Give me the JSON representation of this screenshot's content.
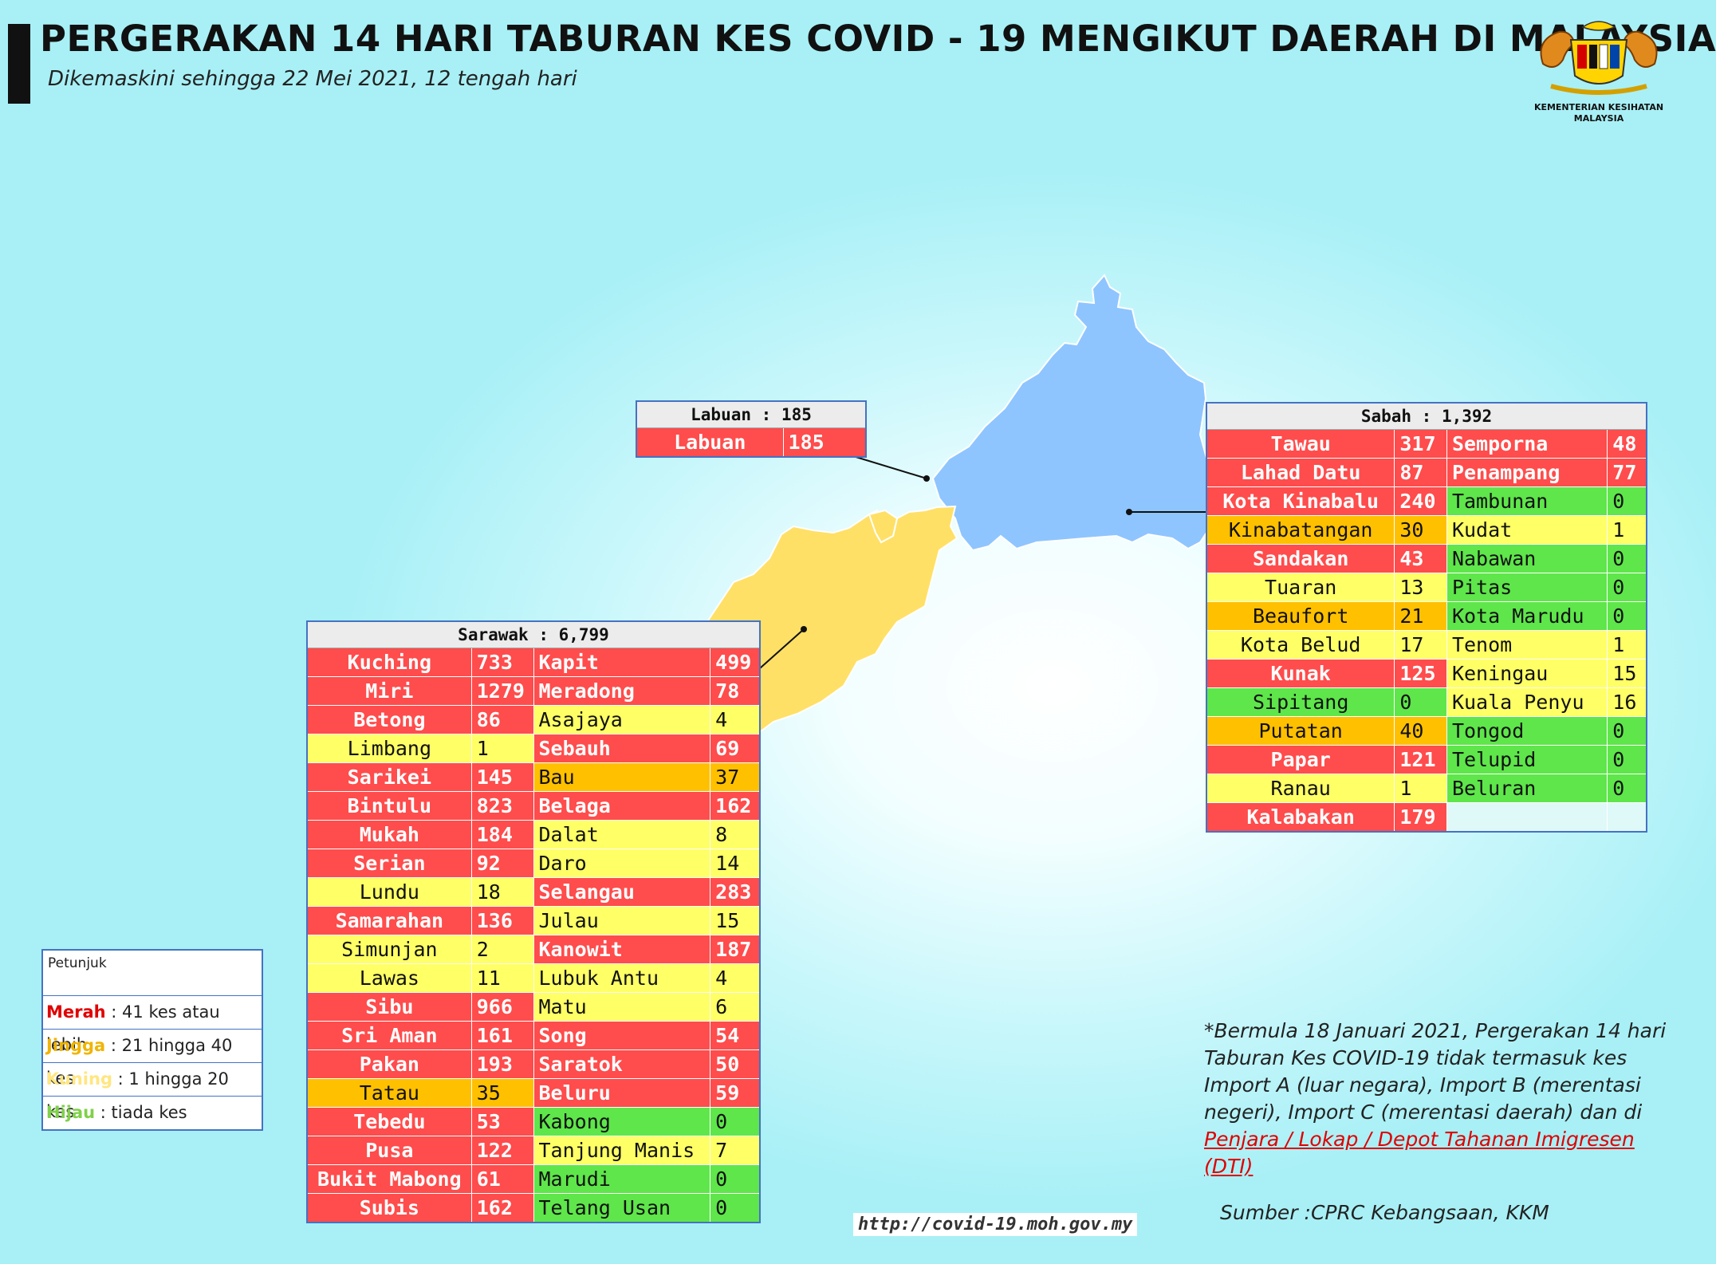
{
  "title": "PERGERAKAN 14 HARI TABURAN KES COVID - 19 MENGIKUT DAERAH DI MALAYSIA",
  "subtitle": "Dikemaskini sehingga 22 Mei 2021, 12 tengah hari",
  "logo": {
    "caption_line1": "KEMENTERIAN KESIHATAN",
    "caption_line2": "MALAYSIA"
  },
  "colors": {
    "merah": "#ff4c4c",
    "jingga": "#ffc000",
    "kuning": "#ffff66",
    "hijau": "#5ee64a",
    "sabah_map": "#8ec5ff",
    "sarawak_map": "#ffe066"
  },
  "labuan": {
    "header": "Labuan : 185",
    "rows": [
      {
        "name": "Labuan",
        "value": "185",
        "level": "merah"
      }
    ]
  },
  "sabah": {
    "header": "Sabah : 1,392",
    "rows": [
      [
        {
          "name": "Tawau",
          "value": "317",
          "level": "merah"
        },
        {
          "name": "Semporna",
          "value": "48",
          "level": "merah"
        }
      ],
      [
        {
          "name": "Lahad Datu",
          "value": "87",
          "level": "merah"
        },
        {
          "name": "Penampang",
          "value": "77",
          "level": "merah"
        }
      ],
      [
        {
          "name": "Kota Kinabalu",
          "value": "240",
          "level": "merah"
        },
        {
          "name": "Tambunan",
          "value": "0",
          "level": "hijau"
        }
      ],
      [
        {
          "name": "Kinabatangan",
          "value": "30",
          "level": "jingga"
        },
        {
          "name": "Kudat",
          "value": "1",
          "level": "kuning"
        }
      ],
      [
        {
          "name": "Sandakan",
          "value": "43",
          "level": "merah"
        },
        {
          "name": "Nabawan",
          "value": "0",
          "level": "hijau"
        }
      ],
      [
        {
          "name": "Tuaran",
          "value": "13",
          "level": "kuning"
        },
        {
          "name": "Pitas",
          "value": "0",
          "level": "hijau"
        }
      ],
      [
        {
          "name": "Beaufort",
          "value": "21",
          "level": "jingga"
        },
        {
          "name": "Kota Marudu",
          "value": "0",
          "level": "hijau"
        }
      ],
      [
        {
          "name": "Kota Belud",
          "value": "17",
          "level": "kuning"
        },
        {
          "name": "Tenom",
          "value": "1",
          "level": "kuning"
        }
      ],
      [
        {
          "name": "Kunak",
          "value": "125",
          "level": "merah"
        },
        {
          "name": "Keningau",
          "value": "15",
          "level": "kuning"
        }
      ],
      [
        {
          "name": "Sipitang",
          "value": "0",
          "level": "hijau"
        },
        {
          "name": "Kuala Penyu",
          "value": "16",
          "level": "kuning"
        }
      ],
      [
        {
          "name": "Putatan",
          "value": "40",
          "level": "jingga"
        },
        {
          "name": "Tongod",
          "value": "0",
          "level": "hijau"
        }
      ],
      [
        {
          "name": "Papar",
          "value": "121",
          "level": "merah"
        },
        {
          "name": "Telupid",
          "value": "0",
          "level": "hijau"
        }
      ],
      [
        {
          "name": "Ranau",
          "value": "1",
          "level": "kuning"
        },
        {
          "name": "Beluran",
          "value": "0",
          "level": "hijau"
        }
      ],
      [
        {
          "name": "Kalabakan",
          "value": "179",
          "level": "merah"
        },
        null
      ]
    ]
  },
  "sarawak": {
    "header": "Sarawak : 6,799",
    "rows": [
      [
        {
          "name": "Kuching",
          "value": "733",
          "level": "merah"
        },
        {
          "name": "Kapit",
          "value": "499",
          "level": "merah"
        }
      ],
      [
        {
          "name": "Miri",
          "value": "1279",
          "level": "merah"
        },
        {
          "name": "Meradong",
          "value": "78",
          "level": "merah"
        }
      ],
      [
        {
          "name": "Betong",
          "value": "86",
          "level": "merah"
        },
        {
          "name": "Asajaya",
          "value": "4",
          "level": "kuning"
        }
      ],
      [
        {
          "name": "Limbang",
          "value": "1",
          "level": "kuning"
        },
        {
          "name": "Sebauh",
          "value": "69",
          "level": "merah"
        }
      ],
      [
        {
          "name": "Sarikei",
          "value": "145",
          "level": "merah"
        },
        {
          "name": "Bau",
          "value": "37",
          "level": "jingga"
        }
      ],
      [
        {
          "name": "Bintulu",
          "value": "823",
          "level": "merah"
        },
        {
          "name": "Belaga",
          "value": "162",
          "level": "merah"
        }
      ],
      [
        {
          "name": "Mukah",
          "value": "184",
          "level": "merah"
        },
        {
          "name": "Dalat",
          "value": "8",
          "level": "kuning"
        }
      ],
      [
        {
          "name": "Serian",
          "value": "92",
          "level": "merah"
        },
        {
          "name": "Daro",
          "value": "14",
          "level": "kuning"
        }
      ],
      [
        {
          "name": "Lundu",
          "value": "18",
          "level": "kuning"
        },
        {
          "name": "Selangau",
          "value": "283",
          "level": "merah"
        }
      ],
      [
        {
          "name": "Samarahan",
          "value": "136",
          "level": "merah"
        },
        {
          "name": "Julau",
          "value": "15",
          "level": "kuning"
        }
      ],
      [
        {
          "name": "Simunjan",
          "value": "2",
          "level": "kuning"
        },
        {
          "name": "Kanowit",
          "value": "187",
          "level": "merah"
        }
      ],
      [
        {
          "name": "Lawas",
          "value": "11",
          "level": "kuning"
        },
        {
          "name": "Lubuk Antu",
          "value": "4",
          "level": "kuning"
        }
      ],
      [
        {
          "name": "Sibu",
          "value": "966",
          "level": "merah"
        },
        {
          "name": "Matu",
          "value": "6",
          "level": "kuning"
        }
      ],
      [
        {
          "name": "Sri Aman",
          "value": "161",
          "level": "merah"
        },
        {
          "name": "Song",
          "value": "54",
          "level": "merah"
        }
      ],
      [
        {
          "name": "Pakan",
          "value": "193",
          "level": "merah"
        },
        {
          "name": "Saratok",
          "value": "50",
          "level": "merah"
        }
      ],
      [
        {
          "name": "Tatau",
          "value": "35",
          "level": "jingga"
        },
        {
          "name": "Beluru",
          "value": "59",
          "level": "merah"
        }
      ],
      [
        {
          "name": "Tebedu",
          "value": "53",
          "level": "merah"
        },
        {
          "name": "Kabong",
          "value": "0",
          "level": "hijau"
        }
      ],
      [
        {
          "name": "Pusa",
          "value": "122",
          "level": "merah"
        },
        {
          "name": "Tanjung Manis",
          "value": "7",
          "level": "kuning"
        }
      ],
      [
        {
          "name": "Bukit Mabong",
          "value": "61",
          "level": "merah"
        },
        {
          "name": "Marudi",
          "value": "0",
          "level": "hijau"
        }
      ],
      [
        {
          "name": "Subis",
          "value": "162",
          "level": "merah"
        },
        {
          "name": "Telang Usan",
          "value": "0",
          "level": "hijau"
        }
      ]
    ]
  },
  "legend": {
    "title": "Petunjuk",
    "items": [
      {
        "key": "Merah",
        "desc": " : 41 kes atau lebih",
        "color": "#e00000"
      },
      {
        "key": "Jingga",
        "desc": " : 21 hingga 40 kes",
        "color": "#f0b400"
      },
      {
        "key": "Kuning",
        "desc": " : 1 hingga 20 kes",
        "color": "#ffe680"
      },
      {
        "key": "Hijau",
        "desc": " : tiada kes",
        "color": "#7fd14a"
      }
    ]
  },
  "note": {
    "text": "*Bermula 18 Januari 2021, Pergerakan 14 hari Taburan Kes COVID-19 tidak termasuk kes Import A (luar negara), Import B (merentasi negeri), Import C (merentasi daerah) dan di ",
    "link_text": "Penjara / Lokap / Depot Tahanan Imigresen (DTI)"
  },
  "source": "Sumber :CPRC Kebangsaan,  KKM",
  "url": "http://covid-19.moh.gov.my"
}
